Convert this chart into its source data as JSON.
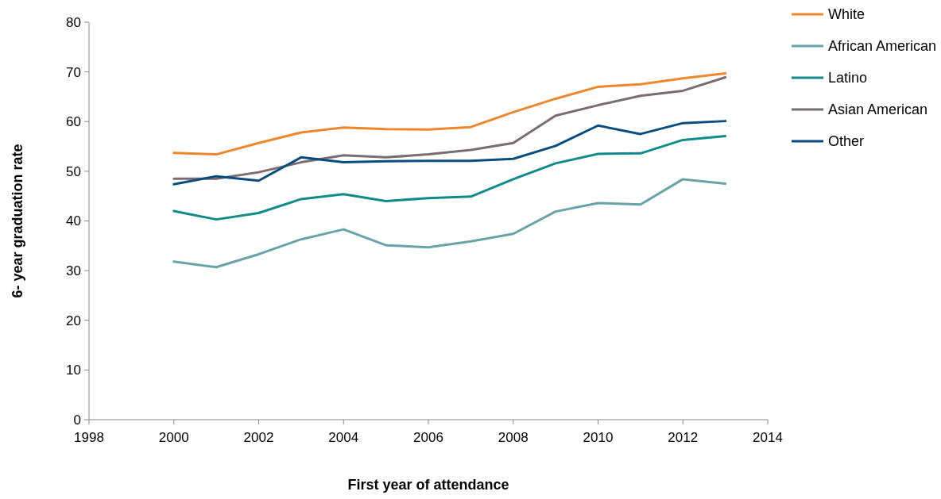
{
  "chart_data": {
    "type": "line",
    "xlabel": "First year of attendance",
    "ylabel": "6- year graduation rate",
    "x": [
      2000,
      2001,
      2002,
      2003,
      2004,
      2005,
      2006,
      2007,
      2008,
      2009,
      2010,
      2011,
      2012,
      2013
    ],
    "xlim": [
      1998,
      2014
    ],
    "xticks": [
      1998,
      2000,
      2002,
      2004,
      2006,
      2008,
      2010,
      2012,
      2014
    ],
    "ylim": [
      0,
      80
    ],
    "yticks": [
      0,
      10,
      20,
      30,
      40,
      50,
      60,
      70,
      80
    ],
    "grid": false,
    "legend": "top right",
    "marker": "none",
    "line_style": "solid",
    "series": [
      {
        "name": "White",
        "color": "#ed872d",
        "values": [
          53.7,
          53.4,
          55.7,
          57.8,
          58.8,
          58.5,
          58.4,
          58.9,
          61.9,
          64.6,
          67.0,
          67.5,
          68.7,
          69.7
        ]
      },
      {
        "name": "African American",
        "color": "#6aa2aa",
        "values": [
          31.8,
          30.7,
          33.3,
          36.3,
          38.3,
          35.1,
          34.7,
          35.9,
          37.4,
          41.9,
          43.6,
          43.3,
          48.4,
          47.5
        ]
      },
      {
        "name": "Latino",
        "color": "#128a8a",
        "values": [
          42.0,
          40.3,
          41.6,
          44.4,
          45.4,
          44.0,
          44.6,
          44.9,
          48.4,
          51.6,
          53.5,
          53.6,
          56.3,
          57.1
        ]
      },
      {
        "name": "Asian American",
        "color": "#7b6b72",
        "values": [
          48.5,
          48.5,
          49.8,
          51.8,
          53.2,
          52.8,
          53.4,
          54.3,
          55.7,
          61.2,
          63.3,
          65.2,
          66.2,
          68.9
        ]
      },
      {
        "name": "Other",
        "color": "#0b4c7e",
        "values": [
          47.4,
          49.0,
          48.1,
          52.8,
          51.8,
          52.0,
          52.1,
          52.1,
          52.5,
          55.1,
          59.2,
          57.5,
          59.7,
          60.1
        ]
      }
    ]
  }
}
